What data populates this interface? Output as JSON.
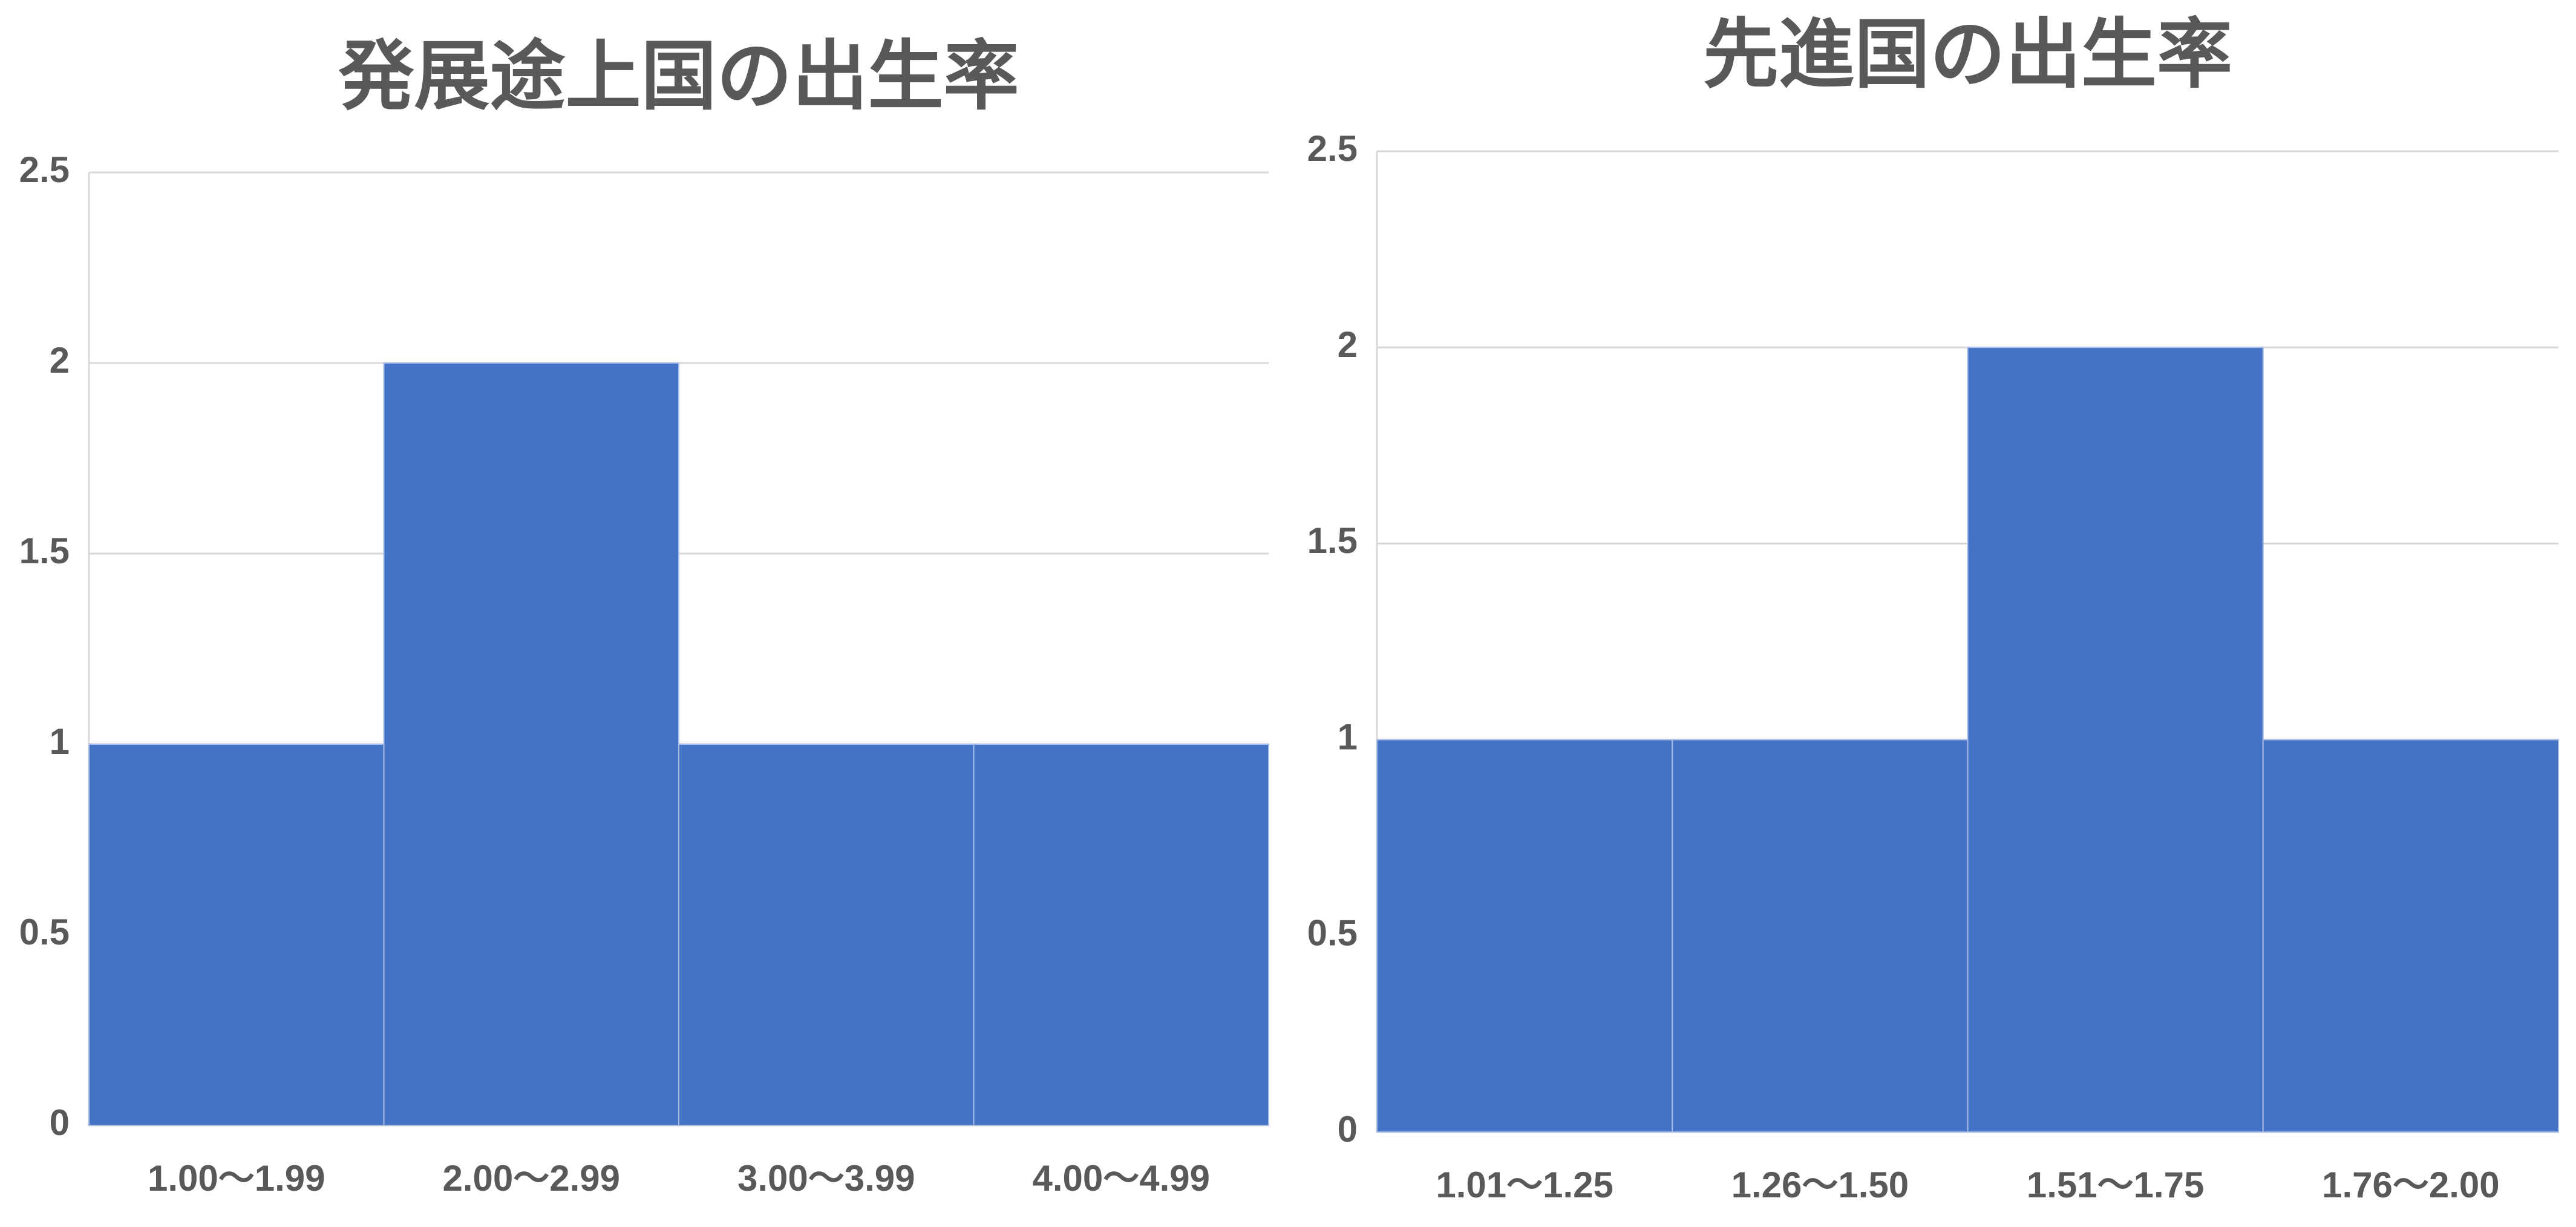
{
  "chart_data": [
    {
      "type": "bar",
      "title": "発展途上国の出生率",
      "categories": [
        "1.00～1.99",
        "2.00～2.99",
        "3.00～3.99",
        "4.00～4.99"
      ],
      "values": [
        1,
        2,
        1,
        1
      ],
      "color": "#4472c4",
      "ylim": [
        0,
        2.5
      ],
      "yticks": [
        0,
        0.5,
        1,
        1.5,
        2,
        2.5
      ],
      "grid": true
    },
    {
      "type": "bar",
      "title": "先進国の出生率",
      "categories": [
        "1.01～1.25",
        "1.26～1.50",
        "1.51～1.75",
        "1.76～2.00"
      ],
      "values": [
        1,
        1,
        2,
        1
      ],
      "color": "#4472c4",
      "ylim": [
        0,
        2.5
      ],
      "yticks": [
        0,
        0.5,
        1,
        1.5,
        2,
        2.5
      ],
      "grid": true
    }
  ]
}
